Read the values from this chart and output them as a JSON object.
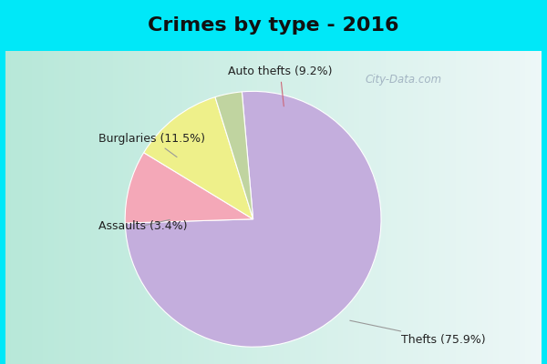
{
  "title": "Crimes by type - 2016",
  "slices": [
    {
      "label": "Thefts",
      "pct": 75.9,
      "color": "#c4aedd"
    },
    {
      "label": "Auto thefts",
      "pct": 9.2,
      "color": "#f4a8b8"
    },
    {
      "label": "Burglaries",
      "pct": 11.5,
      "color": "#eef08a"
    },
    {
      "label": "Assaults",
      "pct": 3.4,
      "color": "#c0d4a0"
    }
  ],
  "title_fontsize": 16,
  "title_fontweight": "bold",
  "bg_cyan": "#00e8f8",
  "bg_green_left": "#b8e8d8",
  "bg_white_right": "#eef8f8",
  "label_fontsize": 9,
  "annotation_color": "#222222",
  "watermark_text": "City-Data.com",
  "watermark_color": "#99aabb"
}
